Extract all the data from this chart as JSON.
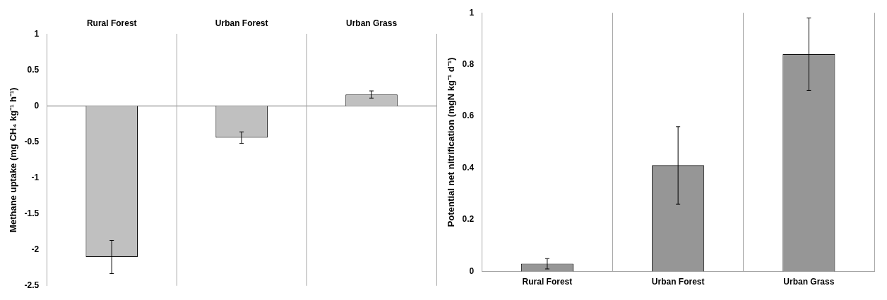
{
  "chart_data": [
    {
      "type": "bar",
      "ylabel": "Methane uptake (mg CH₄ kg⁻¹ h⁻¹)",
      "categories": [
        "Rural Forest",
        "Urban Forest",
        "Urban Grass"
      ],
      "series": [
        {
          "color": "#c0c0c0",
          "values": [
            -2.1,
            -0.44,
            0.16
          ],
          "errors": [
            [
              -2.33,
              -1.87
            ],
            [
              -0.52,
              -0.36
            ],
            [
              0.11,
              0.21
            ]
          ]
        }
      ],
      "ylim": [
        -2.5,
        1
      ],
      "yticks": [
        -2.5,
        -2,
        -1.5,
        -1,
        -0.5,
        0,
        0.5,
        1
      ],
      "grid": "x",
      "legend": false,
      "ref_lines": [
        {
          "axis": "y",
          "value": 0,
          "color": "#a6a6a6"
        }
      ]
    },
    {
      "type": "bar",
      "ylabel": "Potential net nitrification (mgN kg⁻¹ d⁻¹)",
      "categories": [
        "Rural Forest",
        "Urban Forest",
        "Urban Grass"
      ],
      "series": [
        {
          "color": "#969696",
          "values": [
            0.03,
            0.41,
            0.84
          ],
          "errors": [
            [
              0.01,
              0.05
            ],
            [
              0.26,
              0.56
            ],
            [
              0.7,
              0.98
            ]
          ]
        }
      ],
      "ylim": [
        0,
        1
      ],
      "yticks": [
        0,
        0.2,
        0.4,
        0.6,
        0.8,
        1
      ],
      "grid": "x",
      "legend": false
    }
  ]
}
